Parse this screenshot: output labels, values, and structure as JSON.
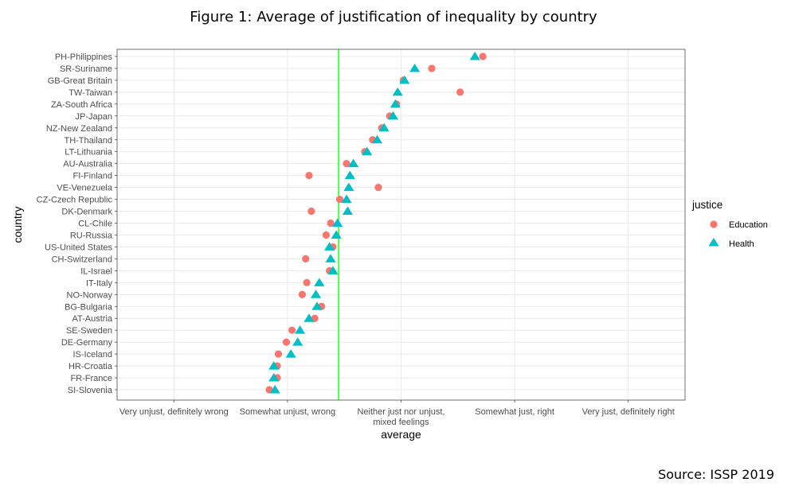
{
  "title": "Figure 1: Average of justification of inequality by country",
  "source": "Source: ISSP 2019",
  "colors": {
    "education": "#F8766D",
    "health": "#00BFC4",
    "reference_line": "#00FF00",
    "panel_bg": "#FFFFFF",
    "grid": "#EBEBEB",
    "panel_border": "#333333"
  },
  "chart_data": {
    "type": "scatter",
    "title": "Figure 1: Average of justification of inequality by country",
    "xlabel": "average",
    "ylabel": "country",
    "xlim": [
      0.5,
      5.5
    ],
    "x_ticks": [
      {
        "value": 1,
        "label": "Very unjust, definitely wrong"
      },
      {
        "value": 2,
        "label": "Somewhat unjust, wrong"
      },
      {
        "value": 3,
        "label": "Neither just nor unjust,\nmixed feelings"
      },
      {
        "value": 4,
        "label": "Somewhat just, right"
      },
      {
        "value": 5,
        "label": "Very just, definitely right"
      }
    ],
    "reference_line_x": 2.45,
    "grid": true,
    "legend": {
      "title": "justice",
      "position": "right"
    },
    "categories": [
      "PH-Philippines",
      "SR-Suriname",
      "GB-Great Britain",
      "TW-Taiwan",
      "ZA-South Africa",
      "JP-Japan",
      "NZ-New Zealand",
      "TH-Thailand",
      "LT-Lithuania",
      "AU-Australia",
      "FI-Finland",
      "VE-Venezuela",
      "CZ-Czech Republic",
      "DK-Denmark",
      "CL-Chile",
      "RU-Russia",
      "US-United States",
      "CH-Switzerland",
      "IL-Israel",
      "IT-Italy",
      "NO-Norway",
      "BG-Bulgaria",
      "AT-Austria",
      "SE-Sweden",
      "DE-Germany",
      "IS-Iceland",
      "HR-Croatia",
      "FR-France",
      "SI-Slovenia"
    ],
    "series": [
      {
        "name": "Education",
        "marker": "circle",
        "values": [
          3.72,
          3.27,
          3.02,
          3.52,
          2.96,
          2.9,
          2.83,
          2.75,
          2.68,
          2.52,
          2.19,
          2.8,
          2.46,
          2.21,
          2.38,
          2.34,
          2.4,
          2.16,
          2.37,
          2.17,
          2.13,
          2.3,
          2.24,
          2.04,
          1.99,
          1.92,
          1.91,
          1.91,
          1.84
        ]
      },
      {
        "name": "Health",
        "marker": "triangle",
        "values": [
          3.65,
          3.12,
          3.03,
          2.97,
          2.95,
          2.93,
          2.85,
          2.79,
          2.7,
          2.58,
          2.55,
          2.54,
          2.52,
          2.53,
          2.44,
          2.43,
          2.37,
          2.38,
          2.4,
          2.28,
          2.25,
          2.26,
          2.19,
          2.11,
          2.09,
          2.03,
          1.88,
          1.88,
          1.89
        ]
      }
    ]
  }
}
